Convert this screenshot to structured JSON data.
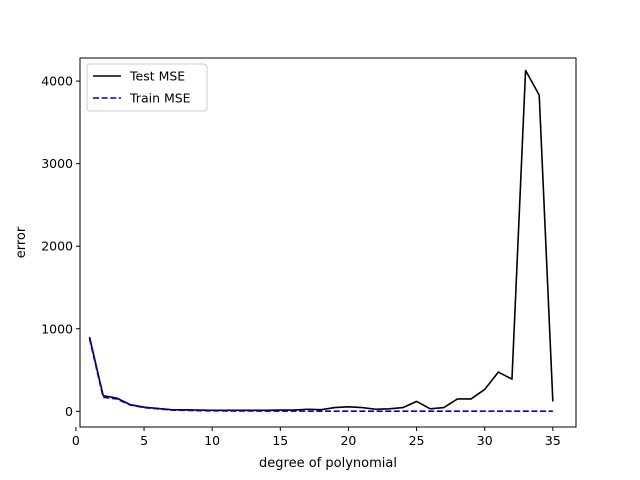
{
  "chart_data": {
    "type": "line",
    "title": "",
    "xlabel": "degree of polynomial",
    "ylabel": "error",
    "xlim": [
      0.3,
      36.7
    ],
    "ylim": [
      -190,
      4280
    ],
    "xticks": [
      0,
      5,
      10,
      15,
      20,
      25,
      30,
      35
    ],
    "yticks": [
      0,
      1000,
      2000,
      3000,
      4000
    ],
    "grid": false,
    "legend_position": "upper-left",
    "x": [
      1,
      2,
      3,
      4,
      5,
      6,
      7,
      8,
      9,
      10,
      11,
      12,
      13,
      14,
      15,
      16,
      17,
      18,
      19,
      20,
      21,
      22,
      23,
      24,
      25,
      26,
      27,
      28,
      29,
      30,
      31,
      32,
      33,
      34,
      35
    ],
    "series": [
      {
        "name": "Test MSE",
        "color": "#000000",
        "dash": "solid",
        "values": [
          900,
          190,
          160,
          80,
          50,
          35,
          20,
          18,
          15,
          12,
          12,
          12,
          12,
          12,
          15,
          15,
          25,
          20,
          45,
          55,
          45,
          25,
          30,
          45,
          120,
          30,
          45,
          150,
          150,
          265,
          475,
          390,
          4130,
          3830,
          120
        ]
      },
      {
        "name": "Train MSE",
        "color": "#0000cc",
        "dash": "dashed",
        "values": [
          880,
          170,
          150,
          75,
          45,
          30,
          15,
          12,
          8,
          6,
          5,
          4,
          4,
          3,
          3,
          3,
          2,
          2,
          2,
          2,
          2,
          2,
          1,
          1,
          1,
          1,
          1,
          1,
          1,
          1,
          1,
          1,
          1,
          1,
          1
        ]
      }
    ]
  }
}
